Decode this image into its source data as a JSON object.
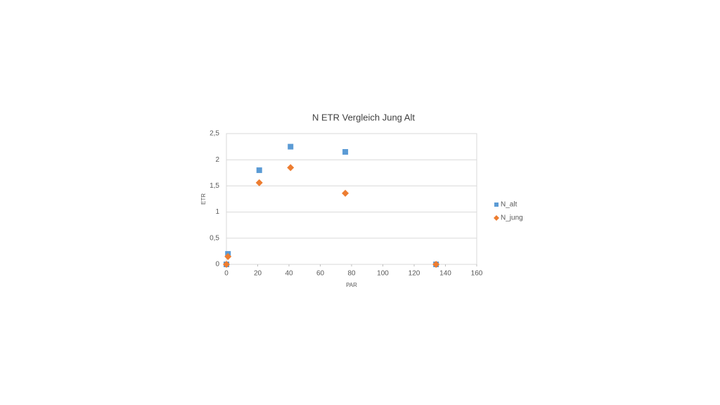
{
  "chart_data": {
    "type": "scatter",
    "title": "N ETR Vergleich Jung Alt",
    "x_label": "PAR",
    "y_label": "ETR",
    "xlim": [
      0,
      160
    ],
    "xticks": [
      0,
      20,
      40,
      60,
      80,
      100,
      120,
      140,
      160
    ],
    "ylim": [
      0,
      2.5
    ],
    "yticks": [
      0,
      {
        "value": 0.5,
        "label": "0,5"
      },
      1,
      {
        "value": 1.5,
        "label": "1,5"
      },
      2,
      {
        "value": 2.5,
        "label": "2,5"
      }
    ],
    "grid": true,
    "legend": "right",
    "series": [
      {
        "name": "N_alt",
        "color": "#5b9bd5",
        "marker": "square",
        "x": [
          0,
          1,
          21,
          41,
          76,
          134
        ],
        "values": [
          0,
          0.2,
          1.8,
          2.25,
          2.15,
          0
        ]
      },
      {
        "name": "N_jung",
        "color": "#ed7d31",
        "marker": "diamond",
        "x": [
          0,
          1,
          21,
          41,
          76,
          134
        ],
        "values": [
          0,
          0.15,
          1.56,
          1.85,
          1.36,
          0
        ]
      }
    ]
  }
}
